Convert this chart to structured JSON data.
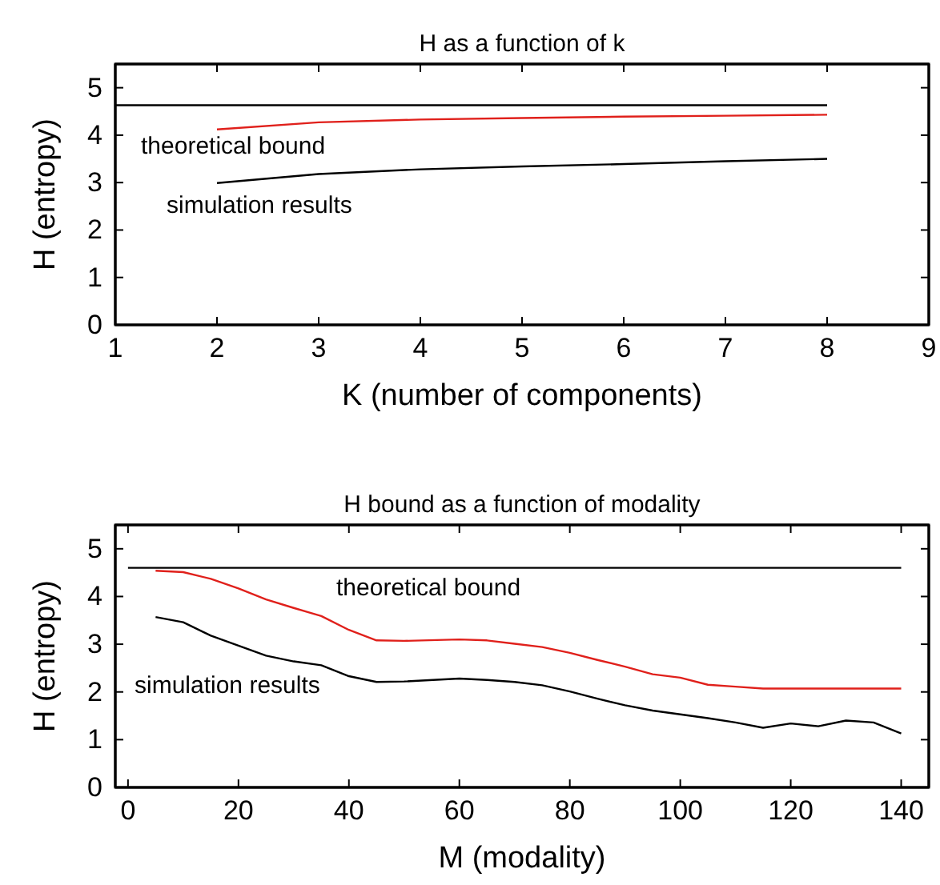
{
  "chart_data": [
    {
      "type": "line",
      "title": "H as a function of k",
      "xlabel": "K (number of components)",
      "ylabel": "H (entropy)",
      "xlim": [
        1,
        9
      ],
      "xticks": [
        1,
        2,
        3,
        4,
        5,
        6,
        7,
        8,
        9
      ],
      "ylim": [
        0,
        5.5
      ],
      "yticks": [
        0,
        1,
        2,
        3,
        4,
        5
      ],
      "grid": false,
      "marker": "none",
      "line_style": "solid",
      "series": [
        {
          "color": "#000000",
          "x": [
            1,
            8
          ],
          "values": [
            4.63,
            4.63
          ]
        },
        {
          "color": "#e0201b",
          "x": [
            2,
            3,
            4,
            5,
            6,
            7,
            8
          ],
          "values": [
            4.12,
            4.27,
            4.33,
            4.36,
            4.39,
            4.41,
            4.43
          ]
        },
        {
          "color": "#000000",
          "x": [
            2,
            3,
            4,
            5,
            6,
            7,
            8
          ],
          "values": [
            2.99,
            3.18,
            3.28,
            3.34,
            3.39,
            3.45,
            3.5
          ]
        }
      ],
      "annotations": [
        "theoretical bound",
        "simulation results"
      ]
    },
    {
      "type": "line",
      "title": "H bound as a function of modality",
      "xlabel": "M (modality)",
      "ylabel": "H (entropy)",
      "xlim": [
        -2.3,
        145
      ],
      "xticks": [
        0,
        20,
        40,
        60,
        80,
        100,
        120,
        140
      ],
      "ylim": [
        0,
        5.5
      ],
      "yticks": [
        0,
        1,
        2,
        3,
        4,
        5
      ],
      "grid": false,
      "marker": "none",
      "line_style": "solid",
      "series": [
        {
          "color": "#000000",
          "x": [
            0,
            140
          ],
          "values": [
            4.6,
            4.6
          ]
        },
        {
          "color": "#e0201b",
          "x": [
            5,
            10,
            15,
            20,
            25,
            30,
            35,
            40,
            45,
            50,
            60,
            65,
            70,
            75,
            80,
            85,
            90,
            95,
            100,
            105,
            110,
            115,
            120,
            140
          ],
          "values": [
            4.54,
            4.51,
            4.37,
            4.17,
            3.94,
            3.76,
            3.59,
            3.3,
            3.08,
            3.07,
            3.1,
            3.08,
            3.01,
            2.94,
            2.82,
            2.67,
            2.53,
            2.37,
            2.3,
            2.15,
            2.11,
            2.07,
            2.07,
            2.07
          ]
        },
        {
          "color": "#000000",
          "x": [
            5,
            10,
            15,
            20,
            25,
            30,
            35,
            40,
            45,
            50,
            60,
            65,
            70,
            75,
            80,
            85,
            90,
            95,
            100,
            105,
            110,
            115,
            120,
            125,
            130,
            135,
            140
          ],
          "values": [
            3.57,
            3.46,
            3.18,
            2.97,
            2.76,
            2.64,
            2.56,
            2.33,
            2.21,
            2.22,
            2.28,
            2.25,
            2.21,
            2.14,
            2.01,
            1.86,
            1.72,
            1.61,
            1.53,
            1.45,
            1.36,
            1.25,
            1.34,
            1.28,
            1.4,
            1.36,
            1.13
          ]
        }
      ],
      "annotations": [
        "theoretical bound",
        "simulation results"
      ]
    }
  ]
}
